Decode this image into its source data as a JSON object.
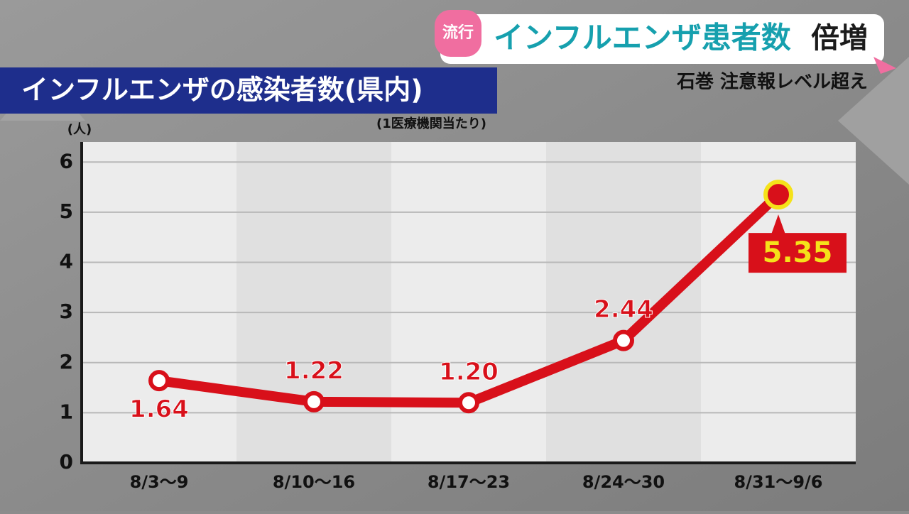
{
  "banner": {
    "tag": "流行",
    "headline": "インフルエンザ患者数",
    "headline_emphasis": "倍増",
    "subheadline": "石巻 注意報レベル超え"
  },
  "chart_data": {
    "type": "line",
    "title": "インフルエンザの感染者数(県内)",
    "subtitle": "(1医療機関当たり)",
    "y_label": "(人)",
    "categories": [
      "8/3〜9",
      "8/10〜16",
      "8/17〜23",
      "8/24〜30",
      "8/31〜9/6"
    ],
    "values": [
      1.64,
      1.22,
      1.2,
      2.44,
      5.35
    ],
    "value_labels": [
      "1.64",
      "1.22",
      "1.20",
      "2.44",
      "5.35"
    ],
    "color": "#d8101a",
    "ylim": [
      0,
      6.4
    ],
    "yticks": [
      0,
      1,
      2,
      3,
      4,
      5,
      6
    ],
    "grid": true
  }
}
